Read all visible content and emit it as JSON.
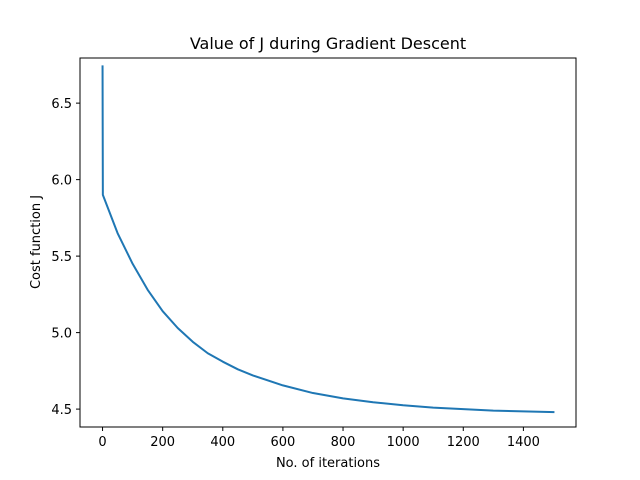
{
  "chart_data": {
    "type": "line",
    "title": "Value of J during Gradient Descent",
    "xlabel": "No. of iterations",
    "ylabel": "Cost function J",
    "xlim": [
      -75,
      1575
    ],
    "ylim": [
      4.383,
      6.795
    ],
    "x_ticks": [
      0,
      200,
      400,
      600,
      800,
      1000,
      1200,
      1400
    ],
    "y_ticks": [
      4.5,
      5.0,
      5.5,
      6.0,
      6.5
    ],
    "x_tick_labels": [
      "0",
      "200",
      "400",
      "600",
      "800",
      "1000",
      "1200",
      "1400"
    ],
    "y_tick_labels": [
      "4.5",
      "5.0",
      "5.5",
      "6.0",
      "6.5"
    ],
    "grid": false,
    "line_color": "#1f77b4",
    "series": [
      {
        "x": [
          0,
          1,
          50,
          100,
          150,
          200,
          250,
          300,
          350,
          400,
          450,
          500,
          600,
          700,
          800,
          900,
          1000,
          1100,
          1200,
          1300,
          1400,
          1500
        ],
        "y": [
          6.74,
          5.9,
          5.65,
          5.45,
          5.28,
          5.14,
          5.03,
          4.94,
          4.865,
          4.81,
          4.76,
          4.72,
          4.655,
          4.605,
          4.57,
          4.545,
          4.525,
          4.51,
          4.5,
          4.49,
          4.485,
          4.48
        ]
      }
    ]
  }
}
